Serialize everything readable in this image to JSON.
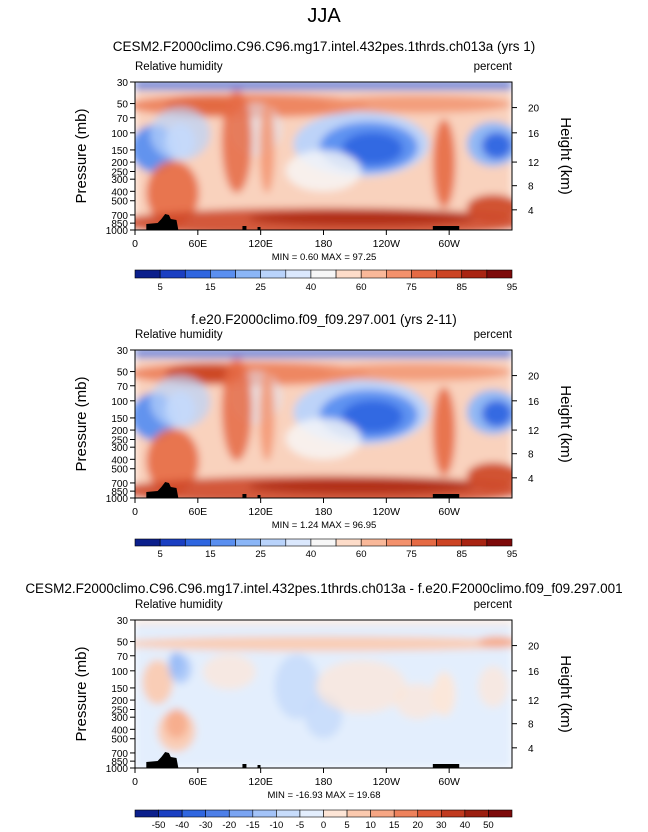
{
  "page": {
    "title": "JJA"
  },
  "chart_data": [
    {
      "type": "heatmap",
      "title": "CESM2.F2000climo.C96.C96.mg17.intel.432pes.1thrds.ch013a (yrs 1)",
      "left_label": "Relative humidity",
      "right_label": "percent",
      "ylabel": "Pressure (mb)",
      "ylabel_right": "Height (km)",
      "x_ticks": [
        "0",
        "60E",
        "120E",
        "180",
        "120W",
        "60W"
      ],
      "y_ticks": [
        "30",
        "50",
        "70",
        "100",
        "150",
        "200",
        "250",
        "300",
        "400",
        "500",
        "700",
        "850",
        "1000"
      ],
      "height_ticks": [
        "20",
        "16",
        "12",
        "8",
        "4"
      ],
      "stats": "MIN =   0.60  MAX =  97.25",
      "colorbar": {
        "levels": [
          "5",
          "15",
          "25",
          "40",
          "60",
          "75",
          "85",
          "95"
        ],
        "colors": [
          "#0b1f8c",
          "#1a3fc2",
          "#2f66e0",
          "#5a8ff0",
          "#8bb6f7",
          "#b9d3fb",
          "#dbe8fd",
          "#f7f7f7",
          "#fddcc9",
          "#f9b899",
          "#f3916c",
          "#e56a44",
          "#cc4424",
          "#a92412",
          "#7d0a0a"
        ]
      },
      "min": 0.6,
      "max": 97.25
    },
    {
      "type": "heatmap",
      "title": "f.e20.F2000climo.f09_f09.297.001 (yrs 2-11)",
      "left_label": "Relative humidity",
      "right_label": "percent",
      "ylabel": "Pressure (mb)",
      "ylabel_right": "Height (km)",
      "x_ticks": [
        "0",
        "60E",
        "120E",
        "180",
        "120W",
        "60W"
      ],
      "y_ticks": [
        "30",
        "50",
        "70",
        "100",
        "150",
        "200",
        "250",
        "300",
        "400",
        "500",
        "700",
        "850",
        "1000"
      ],
      "height_ticks": [
        "20",
        "16",
        "12",
        "8",
        "4"
      ],
      "stats": "MIN =   1.24  MAX =  96.95",
      "colorbar": {
        "levels": [
          "5",
          "15",
          "25",
          "40",
          "60",
          "75",
          "85",
          "95"
        ],
        "colors": [
          "#0b1f8c",
          "#1a3fc2",
          "#2f66e0",
          "#5a8ff0",
          "#8bb6f7",
          "#b9d3fb",
          "#dbe8fd",
          "#f7f7f7",
          "#fddcc9",
          "#f9b899",
          "#f3916c",
          "#e56a44",
          "#cc4424",
          "#a92412",
          "#7d0a0a"
        ]
      },
      "min": 1.24,
      "max": 96.95
    },
    {
      "type": "heatmap",
      "title": "CESM2.F2000climo.C96.C96.mg17.intel.432pes.1thrds.ch013a - f.e20.F2000climo.f09_f09.297.001",
      "left_label": "Relative humidity",
      "right_label": "percent",
      "ylabel": "Pressure (mb)",
      "ylabel_right": "Height (km)",
      "x_ticks": [
        "0",
        "60E",
        "120E",
        "180",
        "120W",
        "60W"
      ],
      "y_ticks": [
        "30",
        "50",
        "70",
        "100",
        "150",
        "200",
        "250",
        "300",
        "400",
        "500",
        "700",
        "850",
        "1000"
      ],
      "height_ticks": [
        "20",
        "16",
        "12",
        "8",
        "4"
      ],
      "stats": "MIN = -16.93  MAX =  19.68",
      "colorbar": {
        "levels": [
          "-50",
          "-40",
          "-30",
          "-20",
          "-15",
          "-10",
          "-5",
          "0",
          "5",
          "10",
          "15",
          "20",
          "30",
          "40",
          "50"
        ],
        "colors": [
          "#0b1f8c",
          "#1a3fc2",
          "#2f66e0",
          "#4d7fe8",
          "#7aa4f2",
          "#a3c3f8",
          "#c7dcfb",
          "#e3eefd",
          "#fde5d6",
          "#fbc9ae",
          "#f6a684",
          "#ee825c",
          "#dd5a36",
          "#c13a1f",
          "#9c1f10",
          "#7d0a0a"
        ]
      },
      "min": -16.93,
      "max": 19.68
    }
  ]
}
